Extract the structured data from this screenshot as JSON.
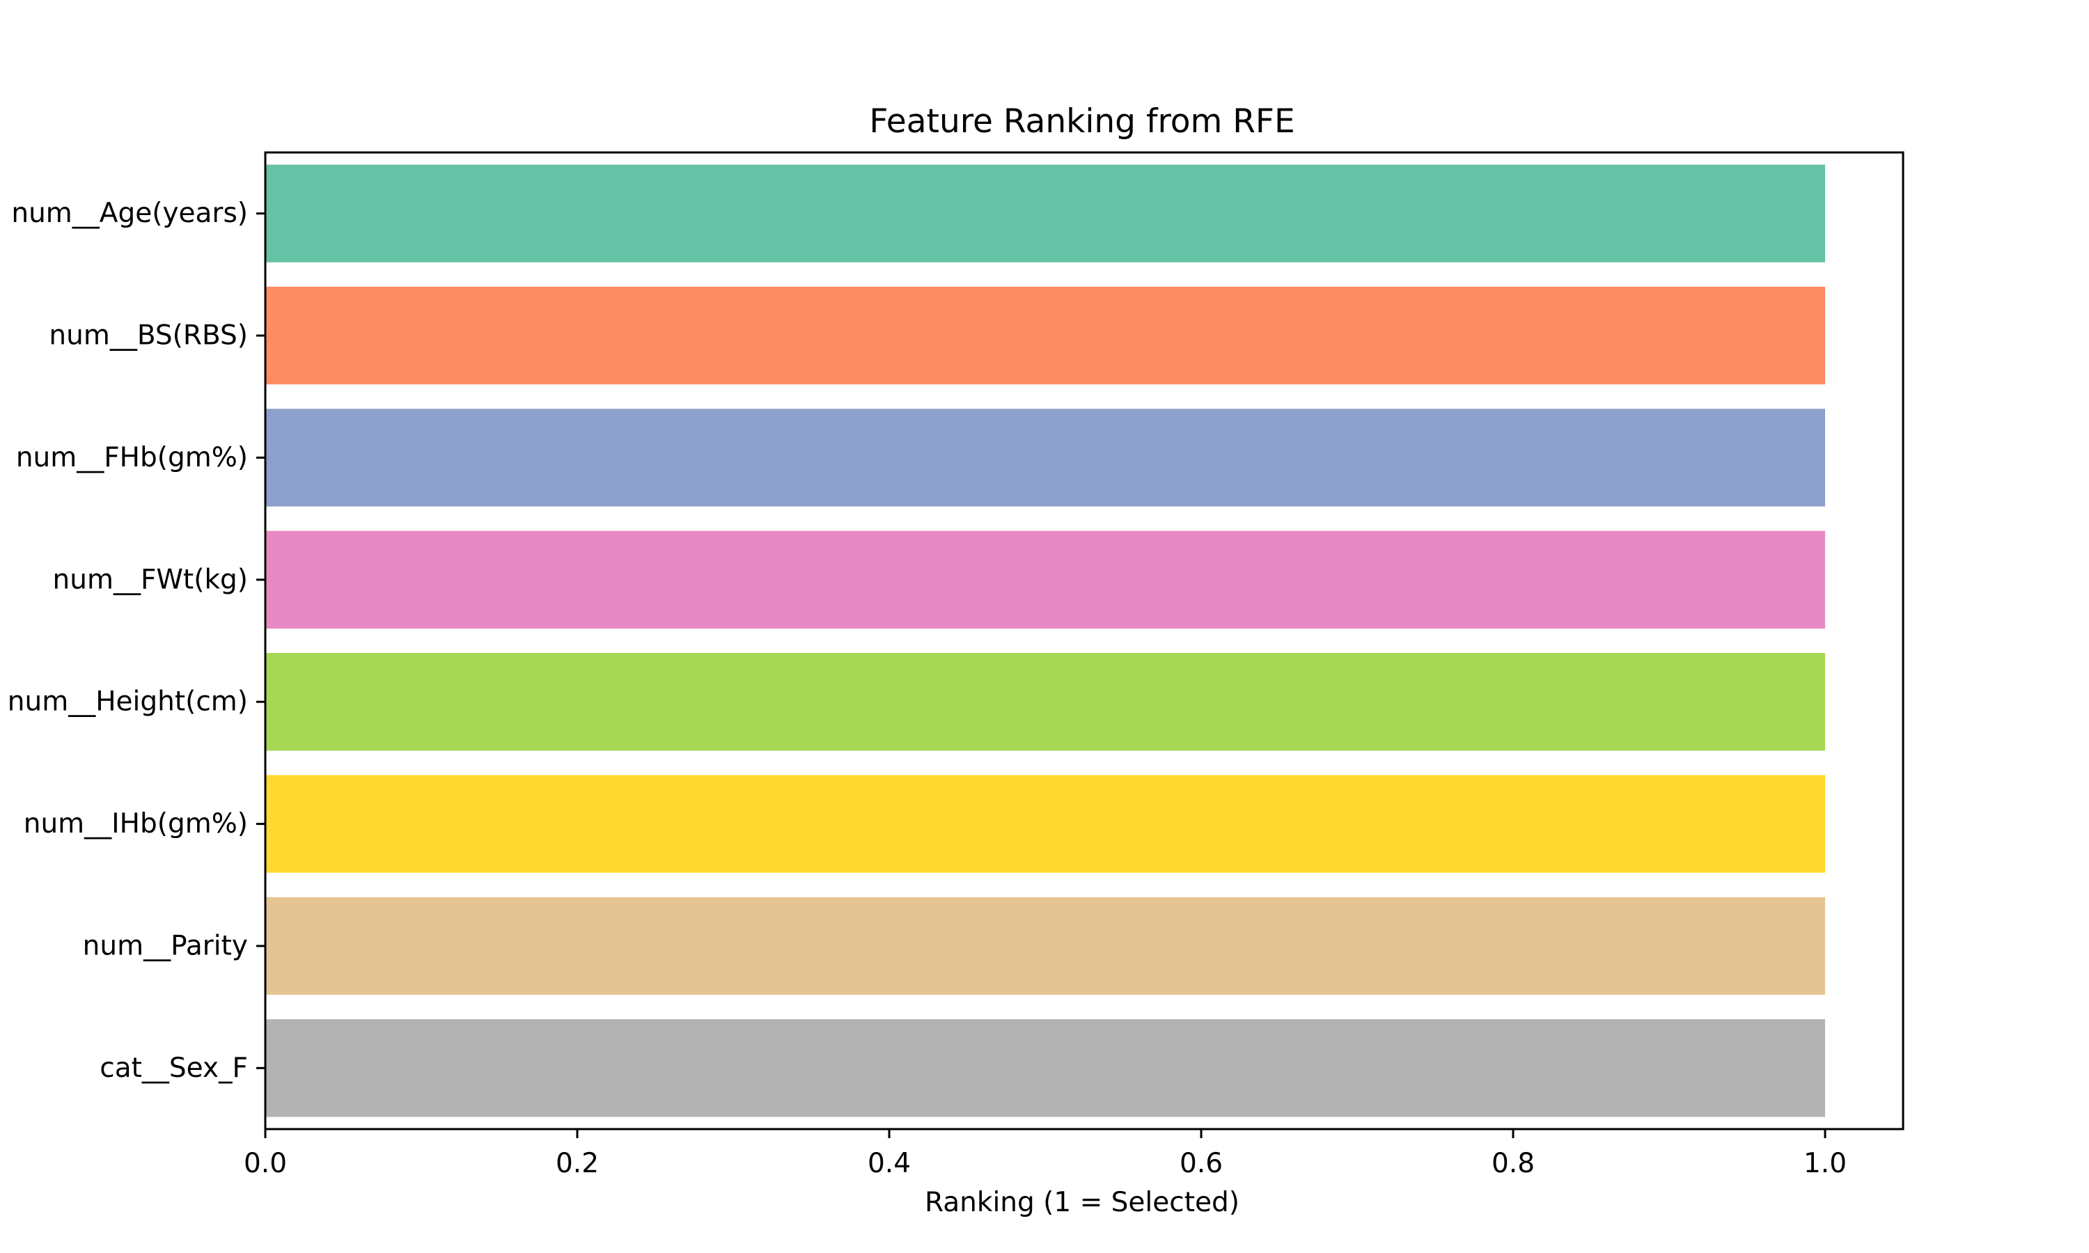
{
  "chart_data": {
    "type": "bar",
    "orientation": "horizontal",
    "title": "Feature Ranking from RFE",
    "xlabel": "Ranking (1 = Selected)",
    "ylabel": "",
    "categories": [
      "num__Age(years)",
      "num__BS(RBS)",
      "num__FHb(gm%)",
      "num__FWt(kg)",
      "num__Height(cm)",
      "num__IHb(gm%)",
      "num__Parity",
      "cat__Sex_F"
    ],
    "values": [
      1,
      1,
      1,
      1,
      1,
      1,
      1,
      1
    ],
    "colors": [
      "#66c2a5",
      "#fc8d62",
      "#8da0cb",
      "#e78ac3",
      "#a6d854",
      "#ffd92f",
      "#e5c494",
      "#b3b3b3"
    ],
    "xlim": [
      0,
      1.05
    ],
    "xticks": [
      0.0,
      0.2,
      0.4,
      0.6,
      0.8,
      1.0
    ],
    "xtick_labels": [
      "0.0",
      "0.2",
      "0.4",
      "0.6",
      "0.8",
      "1.0"
    ],
    "grid": false,
    "legend": false
  }
}
